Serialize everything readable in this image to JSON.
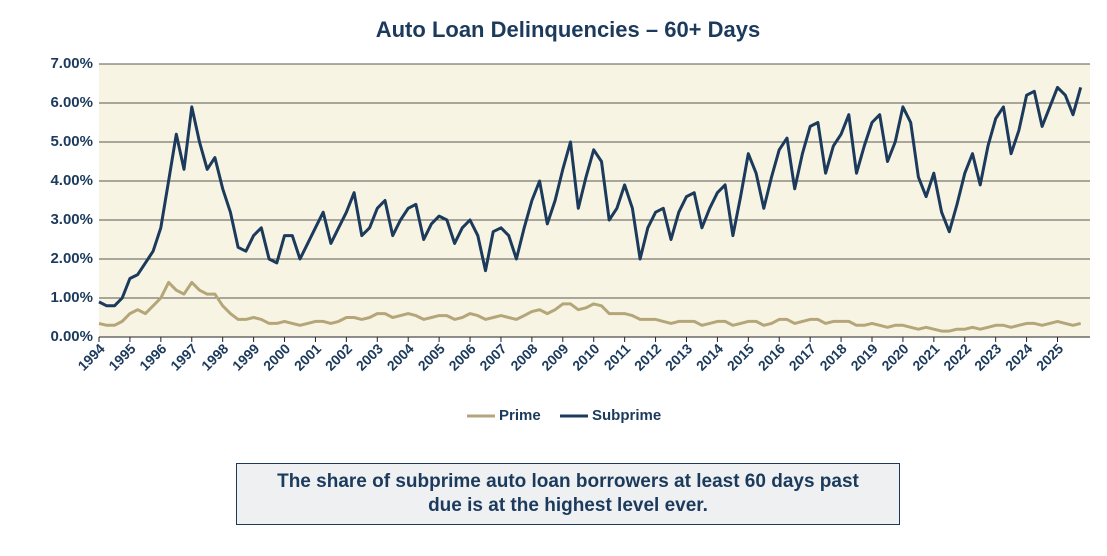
{
  "chart_data": {
    "type": "line",
    "title": "Auto Loan Delinquencies – 60+ Days",
    "categories": [
      "1994",
      null,
      null,
      null,
      "1995",
      null,
      null,
      null,
      "1996",
      null,
      null,
      null,
      "1997",
      null,
      null,
      null,
      "1998",
      null,
      null,
      null,
      "1999",
      null,
      null,
      null,
      "2000",
      null,
      null,
      null,
      "2001",
      null,
      null,
      null,
      "2002",
      null,
      null,
      null,
      "2003",
      null,
      null,
      null,
      "2004",
      null,
      null,
      null,
      "2005",
      null,
      null,
      null,
      "2006",
      null,
      null,
      null,
      "2007",
      null,
      null,
      null,
      "2008",
      null,
      null,
      null,
      "2009",
      null,
      null,
      null,
      "2010",
      null,
      null,
      null,
      "2011",
      null,
      null,
      null,
      "2012",
      null,
      null,
      null,
      "2013",
      null,
      null,
      null,
      "2014",
      null,
      null,
      null,
      "2015",
      null,
      null,
      null,
      "2016",
      null,
      null,
      null,
      "2017",
      null,
      null,
      null,
      "2018",
      null,
      null,
      null,
      "2019",
      null,
      null,
      null,
      "2020",
      null,
      null,
      null,
      "2021",
      null,
      null,
      null,
      "2022",
      null,
      null,
      null,
      "2023",
      null,
      null,
      null,
      "2024",
      null,
      null,
      null,
      "2025",
      null,
      null,
      null
    ],
    "series": [
      {
        "name": "Prime",
        "color": "#b5a67a",
        "values": [
          0.35,
          0.3,
          0.3,
          0.4,
          0.6,
          0.7,
          0.6,
          0.8,
          1.0,
          1.4,
          1.2,
          1.1,
          1.4,
          1.2,
          1.1,
          1.1,
          0.8,
          0.6,
          0.45,
          0.45,
          0.5,
          0.45,
          0.35,
          0.35,
          0.4,
          0.35,
          0.3,
          0.35,
          0.4,
          0.4,
          0.35,
          0.4,
          0.5,
          0.5,
          0.45,
          0.5,
          0.6,
          0.6,
          0.5,
          0.55,
          0.6,
          0.55,
          0.45,
          0.5,
          0.55,
          0.55,
          0.45,
          0.5,
          0.6,
          0.55,
          0.45,
          0.5,
          0.55,
          0.5,
          0.45,
          0.55,
          0.65,
          0.7,
          0.6,
          0.7,
          0.85,
          0.85,
          0.7,
          0.75,
          0.85,
          0.8,
          0.6,
          0.6,
          0.6,
          0.55,
          0.45,
          0.45,
          0.45,
          0.4,
          0.35,
          0.4,
          0.4,
          0.4,
          0.3,
          0.35,
          0.4,
          0.4,
          0.3,
          0.35,
          0.4,
          0.4,
          0.3,
          0.35,
          0.45,
          0.45,
          0.35,
          0.4,
          0.45,
          0.45,
          0.35,
          0.4,
          0.4,
          0.4,
          0.3,
          0.3,
          0.35,
          0.3,
          0.25,
          0.3,
          0.3,
          0.25,
          0.2,
          0.25,
          0.2,
          0.15,
          0.15,
          0.2,
          0.2,
          0.25,
          0.2,
          0.25,
          0.3,
          0.3,
          0.25,
          0.3,
          0.35,
          0.35,
          0.3,
          0.35,
          0.4,
          0.35,
          0.3,
          0.35
        ]
      },
      {
        "name": "Subprime",
        "color": "#1b3a5c",
        "values": [
          0.9,
          0.8,
          0.8,
          1.0,
          1.5,
          1.6,
          1.9,
          2.2,
          2.8,
          4.0,
          5.2,
          4.3,
          5.9,
          5.0,
          4.3,
          4.6,
          3.8,
          3.2,
          2.3,
          2.2,
          2.6,
          2.8,
          2.0,
          1.9,
          2.6,
          2.6,
          2.0,
          2.4,
          2.8,
          3.2,
          2.4,
          2.8,
          3.2,
          3.7,
          2.6,
          2.8,
          3.3,
          3.5,
          2.6,
          3.0,
          3.3,
          3.4,
          2.5,
          2.9,
          3.1,
          3.0,
          2.4,
          2.8,
          3.0,
          2.6,
          1.7,
          2.7,
          2.8,
          2.6,
          2.0,
          2.8,
          3.5,
          4.0,
          2.9,
          3.5,
          4.3,
          5.0,
          3.3,
          4.1,
          4.8,
          4.5,
          3.0,
          3.3,
          3.9,
          3.3,
          2.0,
          2.8,
          3.2,
          3.3,
          2.5,
          3.2,
          3.6,
          3.7,
          2.8,
          3.3,
          3.7,
          3.9,
          2.6,
          3.6,
          4.7,
          4.2,
          3.3,
          4.1,
          4.8,
          5.1,
          3.8,
          4.7,
          5.4,
          5.5,
          4.2,
          4.9,
          5.2,
          5.7,
          4.2,
          4.9,
          5.5,
          5.7,
          4.5,
          5.0,
          5.9,
          5.5,
          4.1,
          3.6,
          4.2,
          3.2,
          2.7,
          3.4,
          4.2,
          4.7,
          3.9,
          4.9,
          5.6,
          5.9,
          4.7,
          5.3,
          6.2,
          6.3,
          5.4,
          5.9,
          6.4,
          6.2,
          5.7,
          6.4
        ]
      }
    ],
    "ylim": [
      0,
      7
    ],
    "yticks": [
      {
        "value": 0,
        "label": "0.00%"
      },
      {
        "value": 1,
        "label": "1.00%"
      },
      {
        "value": 2,
        "label": "2.00%"
      },
      {
        "value": 3,
        "label": "3.00%"
      },
      {
        "value": 4,
        "label": "4.00%"
      },
      {
        "value": 5,
        "label": "5.00%"
      },
      {
        "value": 6,
        "label": "6.00%"
      },
      {
        "value": 7,
        "label": "7.00%"
      }
    ],
    "grid": true,
    "legend": "bottom",
    "caption": "The share of subprime auto loan borrowers at least 60 days past due is at the highest level ever."
  }
}
